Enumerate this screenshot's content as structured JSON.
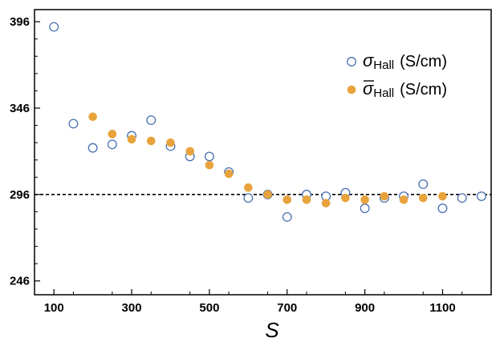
{
  "chart_data": {
    "type": "scatter",
    "title": "",
    "xlabel": "S",
    "ylabel": "",
    "xlim": [
      50,
      1225
    ],
    "ylim": [
      238,
      403
    ],
    "x_ticks": [
      100,
      300,
      500,
      700,
      900,
      1100
    ],
    "y_ticks": [
      246,
      296,
      346,
      396
    ],
    "grid": false,
    "legend_position": "top-right",
    "reference_line": {
      "y": 296,
      "style": "dashed",
      "color": "#000000"
    },
    "series": [
      {
        "name": "σHall (S/cm)",
        "legend_symbol": "σ",
        "legend_subscript": "Hall",
        "legend_unit": "(S/cm)",
        "marker": "open-circle",
        "color": "#4a6fb0",
        "x": [
          100,
          150,
          200,
          250,
          300,
          350,
          400,
          450,
          500,
          550,
          600,
          650,
          700,
          750,
          800,
          850,
          900,
          950,
          1000,
          1050,
          1100,
          1150,
          1200
        ],
        "y": [
          393,
          337,
          323,
          325,
          330,
          339,
          324,
          318,
          318,
          309,
          294,
          296,
          283,
          296,
          295,
          297,
          288,
          294,
          295,
          302,
          288,
          294,
          295
        ]
      },
      {
        "name": "σ̄Hall (S/cm)",
        "legend_symbol": "σ",
        "legend_subscript": "Hall",
        "legend_unit": "(S/cm)",
        "marker": "filled-circle",
        "color": "#e8a33c",
        "x": [
          200,
          250,
          300,
          350,
          400,
          450,
          500,
          550,
          600,
          650,
          700,
          750,
          800,
          850,
          900,
          950,
          1000,
          1050,
          1100
        ],
        "y": [
          341,
          331,
          328,
          327,
          326,
          321,
          313,
          308,
          300,
          296,
          293,
          293,
          291,
          294,
          293,
          295,
          293,
          294,
          295
        ]
      }
    ]
  }
}
